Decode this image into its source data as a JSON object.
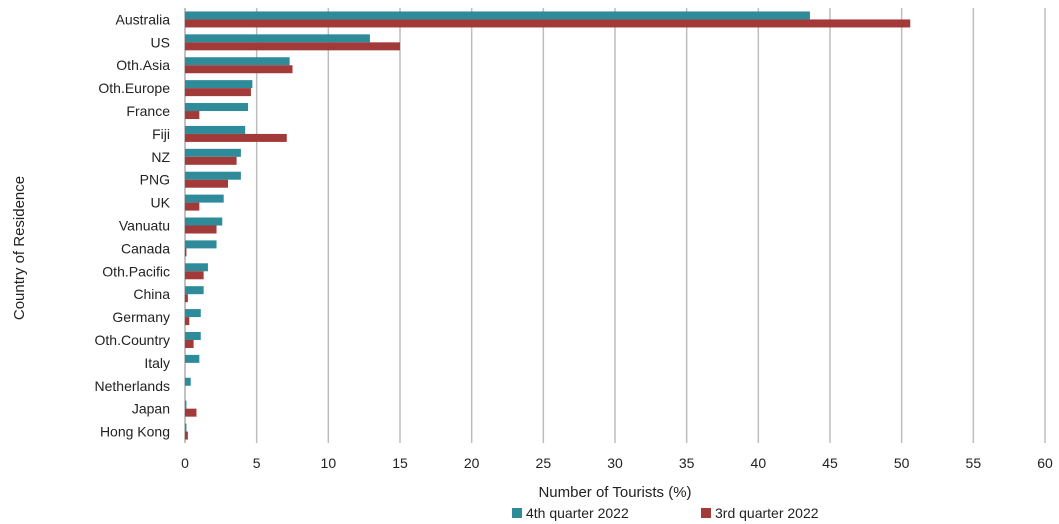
{
  "chart_data": {
    "type": "bar",
    "orientation": "horizontal",
    "categories": [
      "Australia",
      "US",
      "Oth.Asia",
      "Oth.Europe",
      "France",
      "Fiji",
      "NZ",
      "PNG",
      "UK",
      "Vanuatu",
      "Canada",
      "Oth.Pacific",
      "China",
      "Germany",
      "Oth.Country",
      "Italy",
      "Netherlands",
      "Japan",
      "Hong Kong"
    ],
    "series": [
      {
        "name": "4th quarter 2022",
        "color": "#2e8b9a",
        "values": [
          43.6,
          12.9,
          7.3,
          4.7,
          4.4,
          4.2,
          3.9,
          3.9,
          2.7,
          2.6,
          2.2,
          1.6,
          1.3,
          1.1,
          1.1,
          1.0,
          0.4,
          0.1,
          0.1
        ]
      },
      {
        "name": "3rd quarter 2022",
        "color": "#a33a3a",
        "values": [
          50.6,
          15.0,
          7.5,
          4.6,
          1.0,
          7.1,
          3.6,
          3.0,
          1.0,
          2.2,
          0.1,
          1.3,
          0.2,
          0.3,
          0.6,
          0.0,
          0.0,
          0.8,
          0.2
        ]
      }
    ],
    "xlabel": "Number of Tourists (%)",
    "ylabel": "Country of Residence",
    "xlim": [
      0,
      60
    ],
    "xticks": [
      0,
      5,
      10,
      15,
      20,
      25,
      30,
      35,
      40,
      45,
      50,
      55,
      60
    ],
    "grid": "vertical",
    "legend_position": "bottom"
  }
}
